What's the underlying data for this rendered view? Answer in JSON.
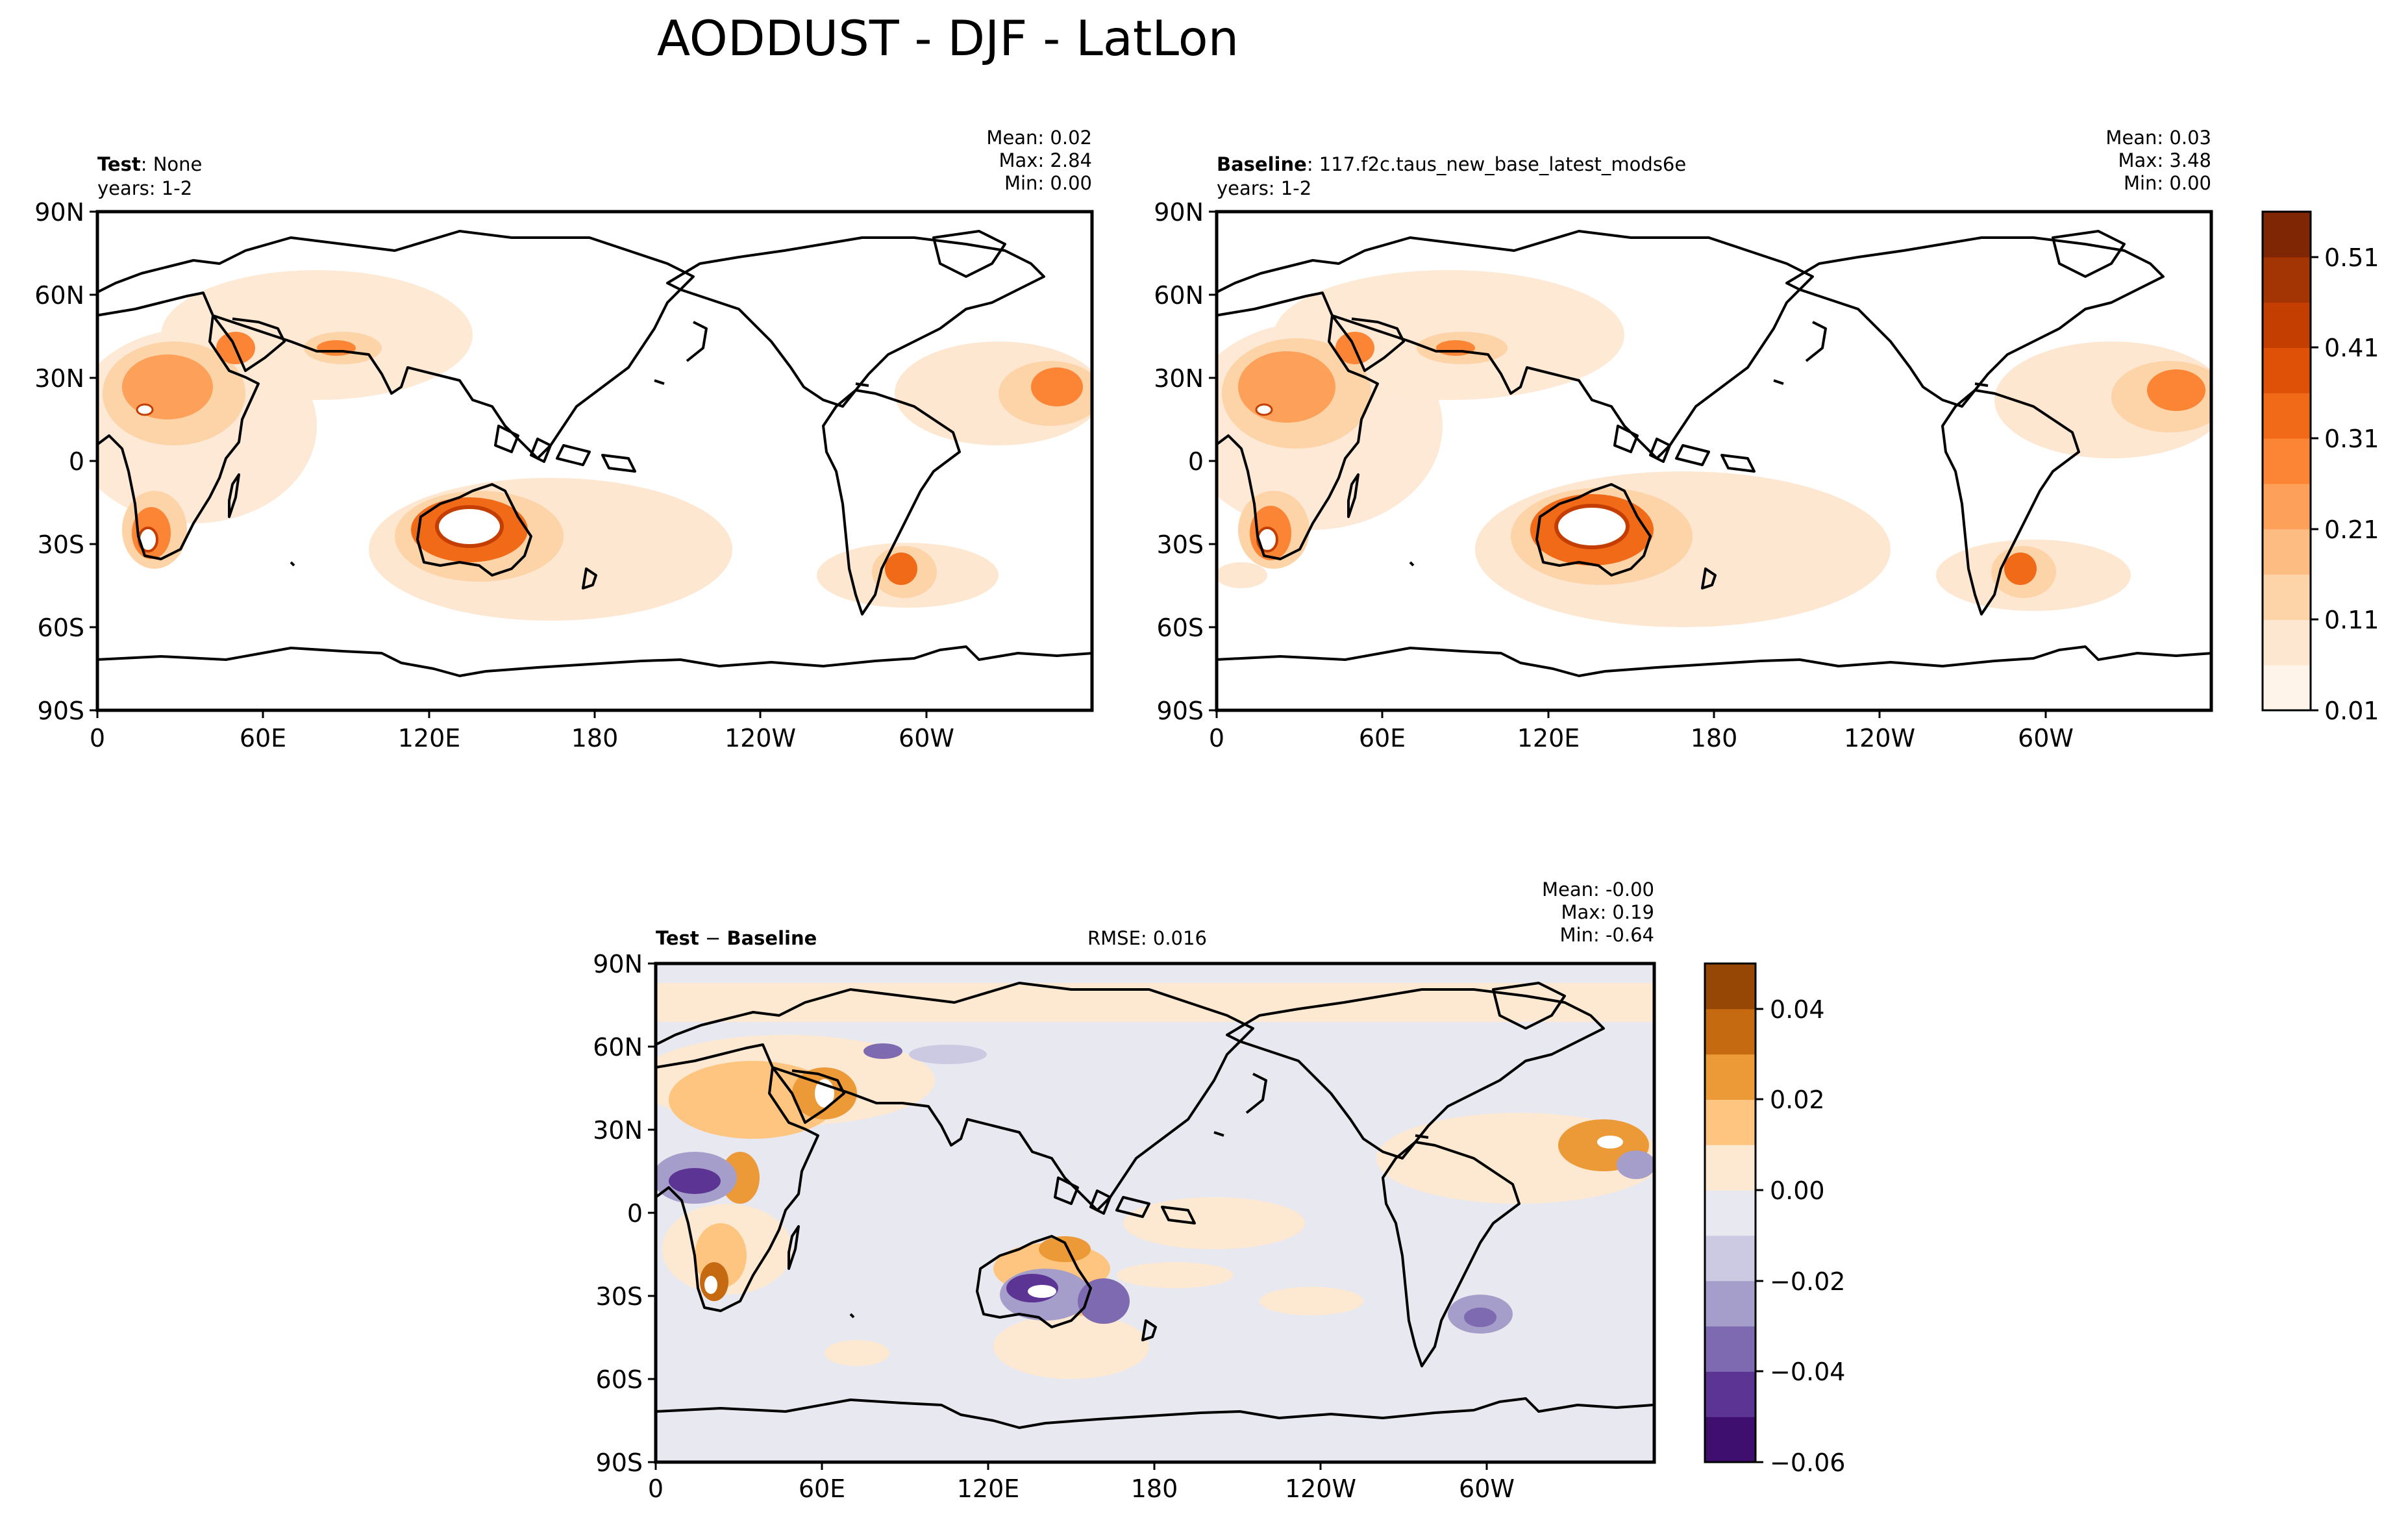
{
  "figure": {
    "title": "AODDUST - DJF - LatLon"
  },
  "panels": [
    {
      "id": "test",
      "name_bold": "Test",
      "name_rest": ": None",
      "years": "years: 1-2",
      "stats": {
        "mean": "Mean:  0.02",
        "max": "Max:  2.84",
        "min": "Min:  0.00"
      },
      "xticks": [
        "0",
        "60E",
        "120E",
        "180",
        "120W",
        "60W"
      ],
      "yticks": [
        "90N",
        "60N",
        "30N",
        "0",
        "30S",
        "60S",
        "90S"
      ]
    },
    {
      "id": "baseline",
      "name_bold": "Baseline",
      "name_rest": ": 117.f2c.taus_new_base_latest_mods6e",
      "years": "years: 1-2",
      "stats": {
        "mean": "Mean:  0.03",
        "max": "Max:  3.48",
        "min": "Min:  0.00"
      },
      "xticks": [
        "0",
        "60E",
        "120E",
        "180",
        "120W",
        "60W"
      ],
      "yticks": [
        "90N",
        "60N",
        "30N",
        "0",
        "30S",
        "60S",
        "90S"
      ]
    },
    {
      "id": "diff",
      "name_bold": "Test",
      "name_rest": " − ",
      "name_bold2": "Baseline",
      "rmse": "RMSE: 0.016",
      "stats": {
        "mean": "Mean: -0.00",
        "max": "Max:  0.19",
        "min": "Min: -0.64"
      },
      "xticks": [
        "0",
        "60E",
        "120E",
        "180",
        "120W",
        "60W"
      ],
      "yticks": [
        "90N",
        "60N",
        "30N",
        "0",
        "30S",
        "60S",
        "90S"
      ]
    }
  ],
  "colorbars": [
    {
      "id": "cbar-main",
      "ticks": [
        "0.01",
        "0.11",
        "0.21",
        "0.31",
        "0.41",
        "0.51"
      ],
      "colors": [
        "#fff4ea",
        "#fee7d1",
        "#fdd3a8",
        "#fdbd82",
        "#fda05a",
        "#fb8435",
        "#f06a18",
        "#e05108",
        "#c43e02",
        "#a33403",
        "#7f2704"
      ]
    },
    {
      "id": "cbar-diff",
      "ticks": [
        "0.04",
        "0.02",
        "0.00",
        "−0.02",
        "−0.04",
        "−0.06"
      ],
      "colors": [
        "#3f0f6f",
        "#5c3493",
        "#7e6ab0",
        "#a59ecb",
        "#ccc9e2",
        "#e8e8f0",
        "#fde9d1",
        "#fdc57f",
        "#ec9938",
        "#c66a12",
        "#964705"
      ]
    }
  ],
  "chart_data": [
    {
      "type": "heatmap",
      "title": "AODDUST - DJF - LatLon",
      "panel": "Test: None",
      "variable": "AODDUST",
      "season": "DJF",
      "stats": {
        "mean": 0.02,
        "max": 2.84,
        "min": 0.0
      },
      "xlim": [
        0,
        360
      ],
      "ylim": [
        -90,
        90
      ],
      "clevels": [
        0.01,
        0.06,
        0.11,
        0.16,
        0.21,
        0.26,
        0.31,
        0.36,
        0.41,
        0.46,
        0.51,
        0.56
      ],
      "regions": [
        {
          "lon": 15,
          "lat": 18,
          "value": 0.35
        },
        {
          "lon": 25,
          "lat": 15,
          "value": 0.33
        },
        {
          "lon": 30,
          "lat": 10,
          "value": 0.3
        },
        {
          "lon": 20,
          "lat": -25,
          "value": 0.45
        },
        {
          "lon": 135,
          "lat": -25,
          "value": 0.55
        },
        {
          "lon": 305,
          "lat": -38,
          "value": 0.36
        },
        {
          "lon": 347,
          "lat": 15,
          "value": 0.3
        },
        {
          "lon": 45,
          "lat": 30,
          "value": 0.25
        },
        {
          "lon": 60,
          "lat": 40,
          "value": 0.15
        },
        {
          "lon": 85,
          "lat": 40,
          "value": 0.28
        }
      ]
    },
    {
      "type": "heatmap",
      "panel": "Baseline: 117.f2c.taus_new_base_latest_mods6e",
      "variable": "AODDUST",
      "season": "DJF",
      "stats": {
        "mean": 0.03,
        "max": 3.48,
        "min": 0.0
      },
      "xlim": [
        0,
        360
      ],
      "ylim": [
        -90,
        90
      ],
      "clevels": [
        0.01,
        0.06,
        0.11,
        0.16,
        0.21,
        0.26,
        0.31,
        0.36,
        0.41,
        0.46,
        0.51,
        0.56
      ],
      "regions": [
        {
          "lon": 15,
          "lat": 18,
          "value": 0.38
        },
        {
          "lon": 25,
          "lat": 15,
          "value": 0.35
        },
        {
          "lon": 30,
          "lat": 10,
          "value": 0.32
        },
        {
          "lon": 20,
          "lat": -25,
          "value": 0.46
        },
        {
          "lon": 135,
          "lat": -25,
          "value": 0.56
        },
        {
          "lon": 305,
          "lat": -38,
          "value": 0.38
        },
        {
          "lon": 347,
          "lat": 15,
          "value": 0.32
        },
        {
          "lon": 45,
          "lat": 30,
          "value": 0.26
        },
        {
          "lon": 60,
          "lat": 40,
          "value": 0.15
        },
        {
          "lon": 85,
          "lat": 40,
          "value": 0.26
        }
      ]
    },
    {
      "type": "heatmap",
      "panel": "Test − Baseline",
      "rmse": 0.016,
      "stats": {
        "mean": -0.0,
        "max": 0.19,
        "min": -0.64
      },
      "xlim": [
        0,
        360
      ],
      "ylim": [
        -90,
        90
      ],
      "clevels": [
        -0.06,
        -0.05,
        -0.04,
        -0.03,
        -0.02,
        -0.01,
        0.0,
        0.01,
        0.02,
        0.03,
        0.04,
        0.05
      ],
      "regions": [
        {
          "lon": 10,
          "lat": 10,
          "value": -0.05
        },
        {
          "lon": 25,
          "lat": 20,
          "value": 0.03
        },
        {
          "lon": 50,
          "lat": 30,
          "value": 0.03
        },
        {
          "lon": 125,
          "lat": -25,
          "value": -0.05
        },
        {
          "lon": 140,
          "lat": -20,
          "value": 0.03
        },
        {
          "lon": 305,
          "lat": -35,
          "value": -0.04
        },
        {
          "lon": 340,
          "lat": 15,
          "value": 0.03
        },
        {
          "lon": 355,
          "lat": 10,
          "value": -0.03
        },
        {
          "lon": 20,
          "lat": -28,
          "value": 0.03
        }
      ]
    }
  ]
}
